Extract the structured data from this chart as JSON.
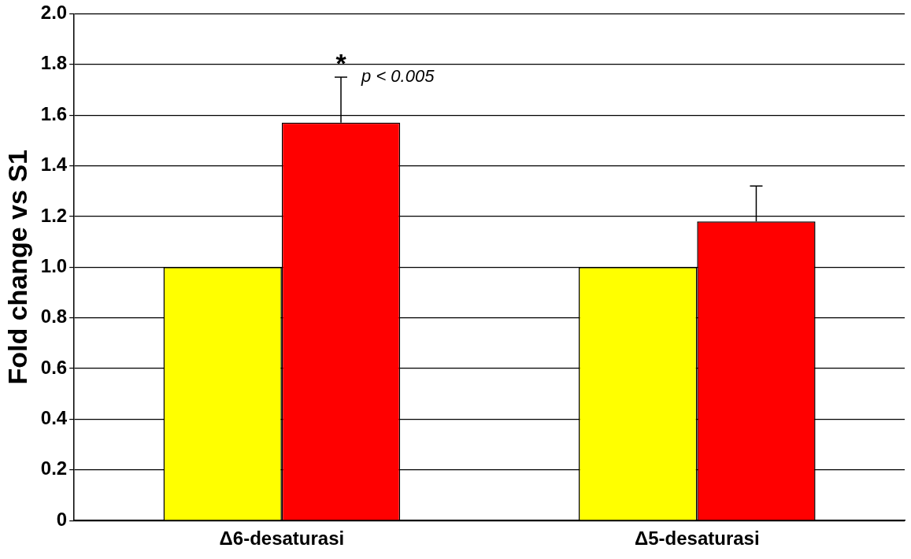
{
  "chart_data": {
    "type": "bar",
    "ylabel": "Fold change vs S1",
    "categories": [
      "Δ6-desaturasi",
      "Δ5-desaturasi"
    ],
    "series": [
      {
        "color": "#ffff00",
        "values": [
          1.0,
          1.0
        ]
      },
      {
        "color": "#ff0000",
        "values": [
          1.57,
          1.18
        ],
        "errors": [
          [
            1.57,
            1.75
          ],
          [
            1.18,
            1.32
          ]
        ]
      }
    ],
    "ylim": [
      0,
      2
    ],
    "yticks": [
      0,
      0.2,
      0.4,
      0.6,
      0.8,
      {
        "value": 1,
        "label": "1.0"
      },
      1.2,
      1.4,
      1.6,
      1.8,
      {
        "value": 2,
        "label": "2.0"
      }
    ],
    "grid": "y",
    "legend": false,
    "annotations": [
      "*",
      "p < 0.005"
    ]
  }
}
